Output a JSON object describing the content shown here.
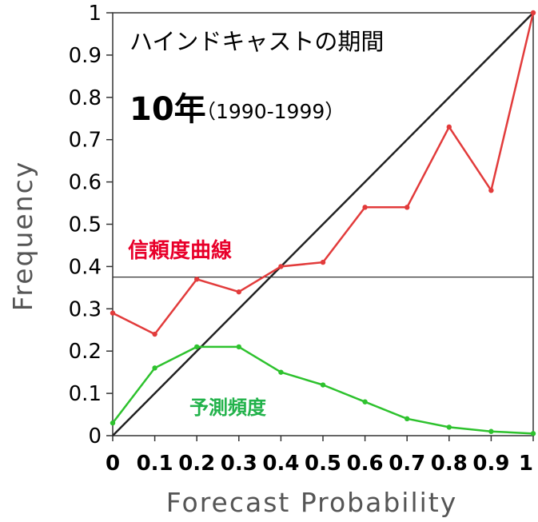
{
  "chart_data": {
    "type": "line",
    "xlabel": "Forecast Probability",
    "ylabel": "Frequency",
    "xlim": [
      0,
      1
    ],
    "ylim": [
      0,
      1
    ],
    "x_ticks": [
      "0",
      "0.1",
      "0.2",
      "0.3",
      "0.4",
      "0.5",
      "0.6",
      "0.7",
      "0.8",
      "0.9",
      "1"
    ],
    "y_ticks": [
      "0",
      "0.1",
      "0.2",
      "0.3",
      "0.4",
      "0.5",
      "0.6",
      "0.7",
      "0.8",
      "0.9",
      "1"
    ],
    "x": [
      0,
      0.1,
      0.2,
      0.3,
      0.4,
      0.5,
      0.6,
      0.7,
      0.8,
      0.9,
      1.0
    ],
    "series": [
      {
        "name": "信頼度曲線",
        "color": "#e23b3b",
        "values": [
          0.29,
          0.24,
          0.37,
          0.34,
          0.4,
          0.41,
          0.54,
          0.54,
          0.73,
          0.58,
          1.0
        ]
      },
      {
        "name": "予測頻度",
        "color": "#2ec22e",
        "values": [
          0.03,
          0.16,
          0.21,
          0.21,
          0.15,
          0.12,
          0.08,
          0.04,
          0.02,
          0.01,
          0.005
        ]
      }
    ],
    "reference_lines": {
      "diagonal": true,
      "climatology": 0.375
    },
    "annotations": {
      "hindcast_title": "ハインドキャストの期間",
      "period_main": "10年",
      "period_years": "（1990-1999）",
      "reliability_label": "信頼度曲線",
      "frequency_label": "予測頻度"
    },
    "grid": false,
    "legend": "none"
  }
}
